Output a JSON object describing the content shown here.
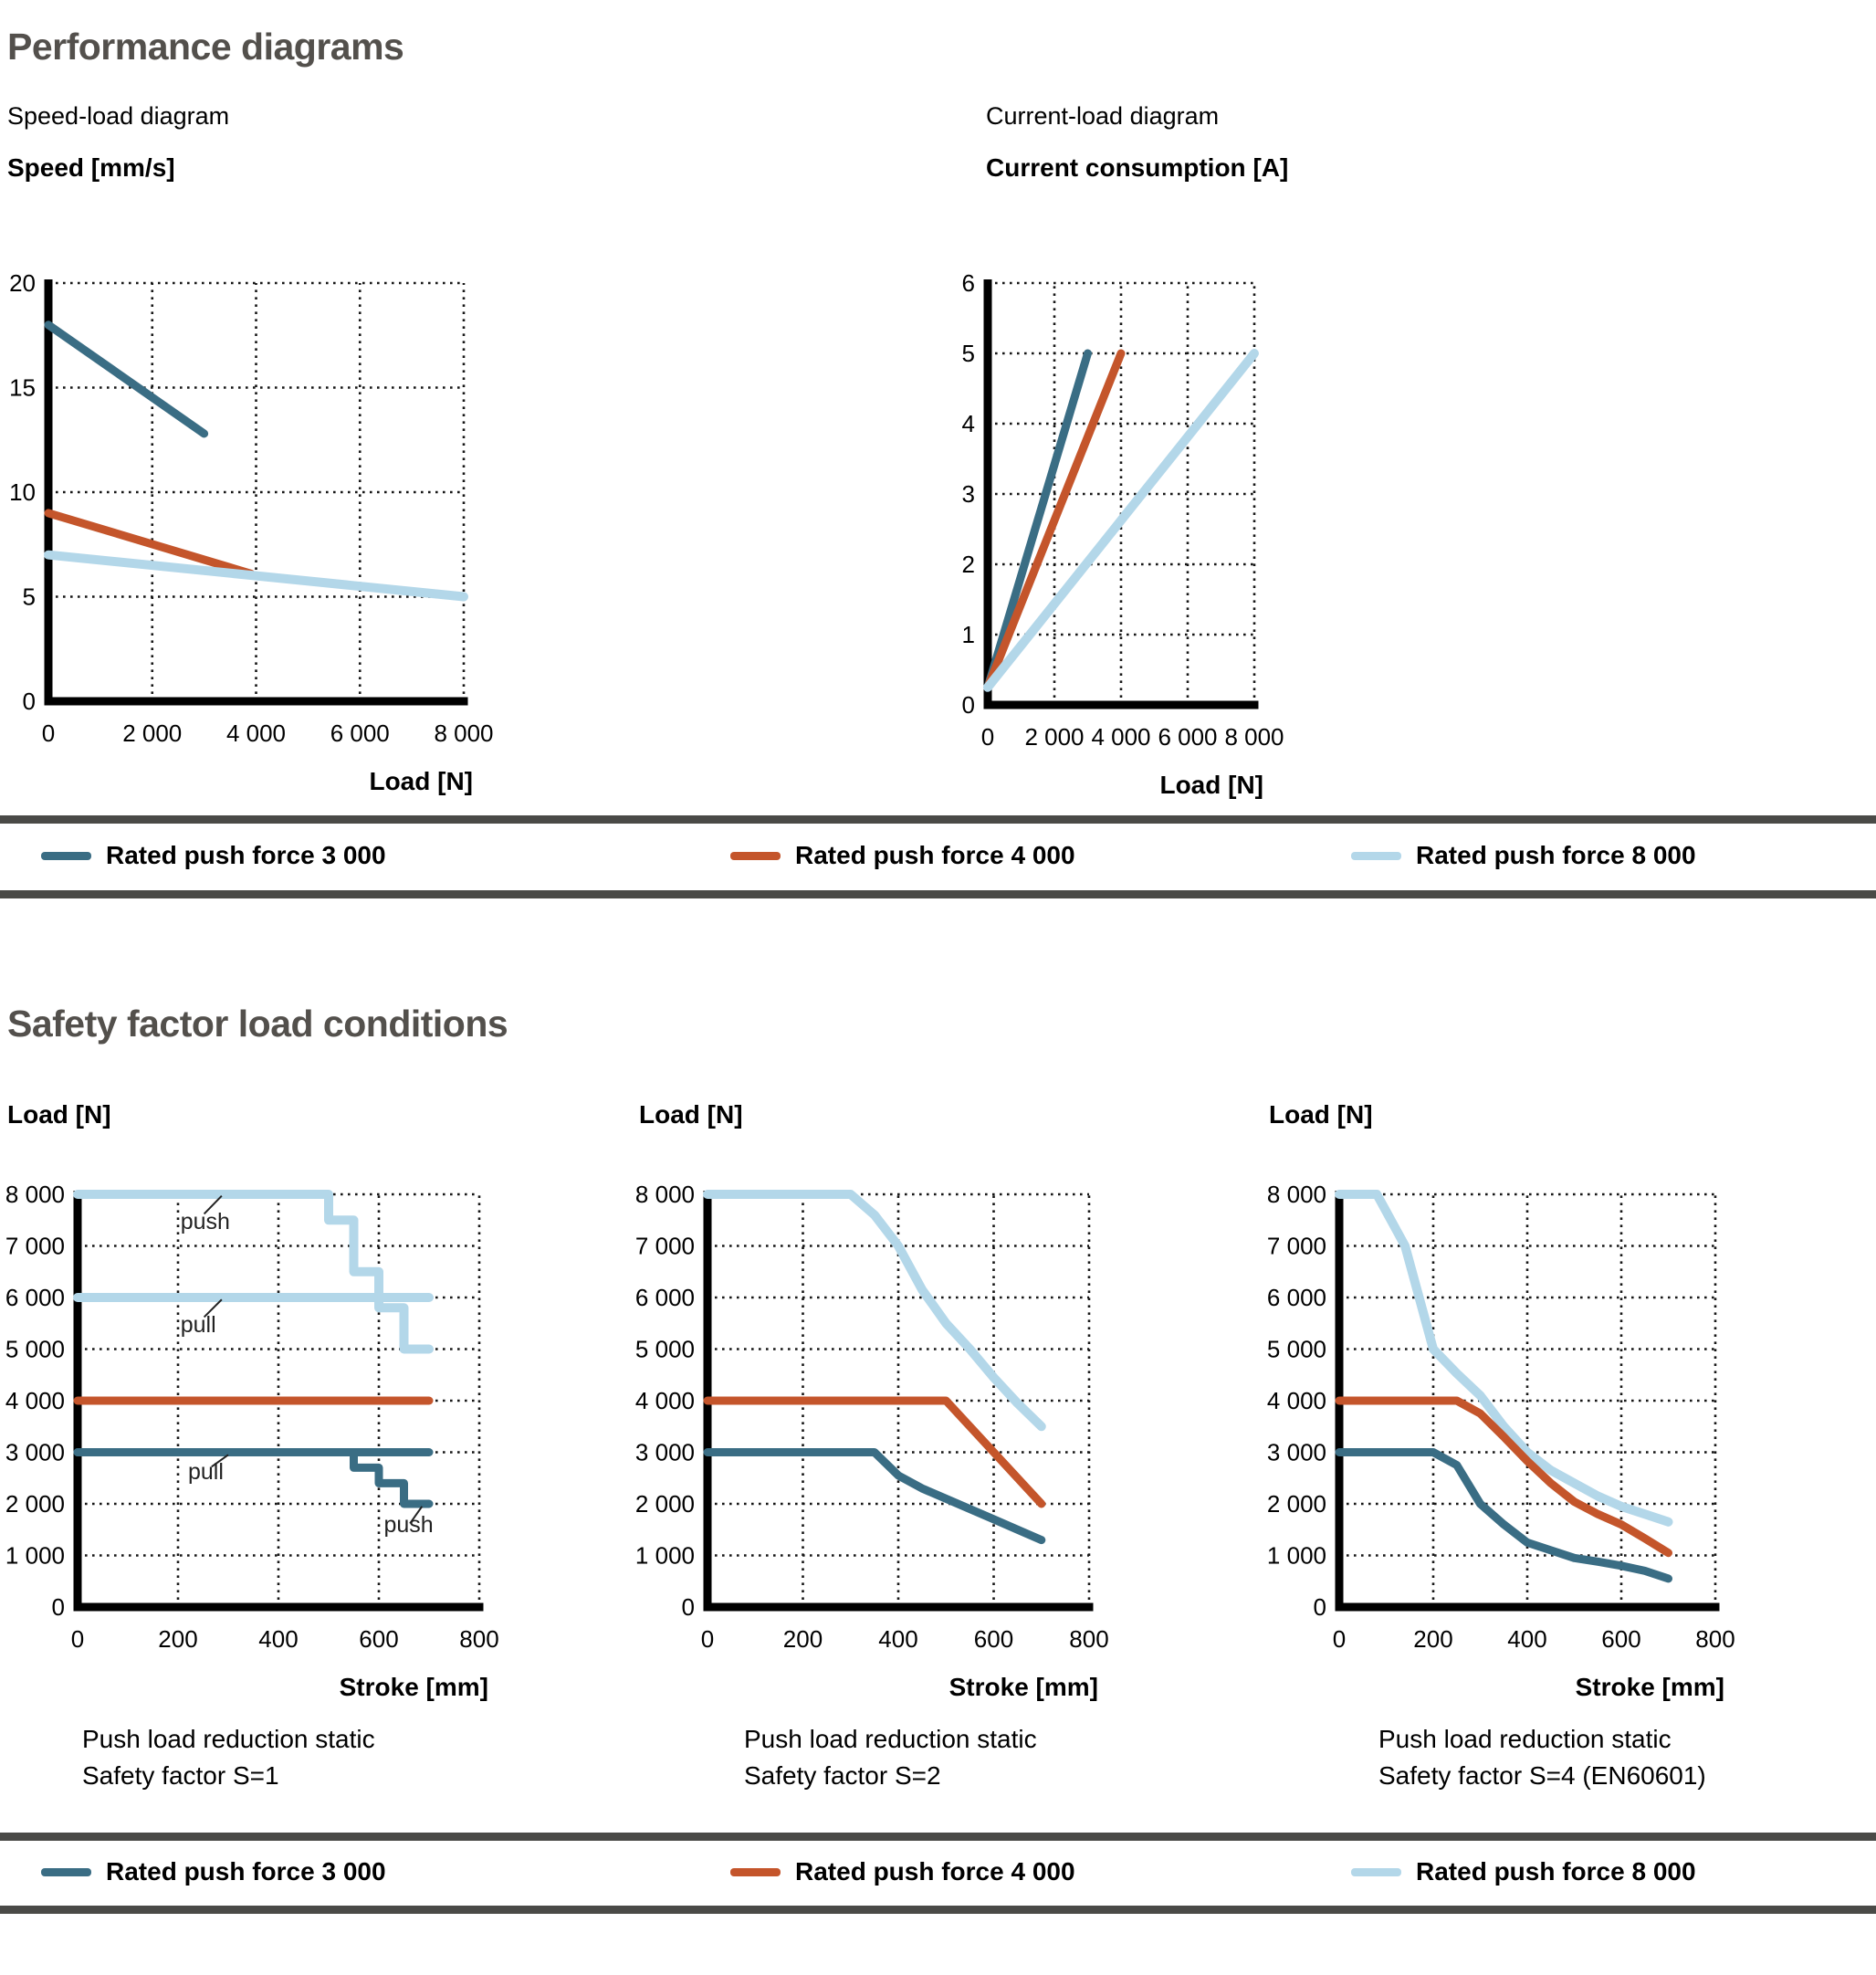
{
  "page": {
    "title": "Performance diagrams",
    "section2_title": "Safety factor load conditions"
  },
  "colors": {
    "force_3000": "#3a6d84",
    "force_4000": "#c4552b",
    "force_8000": "#b3d7e9",
    "heading": "#53504c",
    "rule": "#4a4a47"
  },
  "legend": {
    "items": [
      {
        "label": "Rated push force 3 000",
        "color": "#3a6d84"
      },
      {
        "label": "Rated push force 4 000",
        "color": "#c4552b"
      },
      {
        "label": "Rated push force 8 000",
        "color": "#b3d7e9"
      }
    ]
  },
  "captions": [
    {
      "line1": "Push load reduction static",
      "line2": "Safety factor S=1"
    },
    {
      "line1": "Push load reduction static",
      "line2": "Safety factor S=2"
    },
    {
      "line1": "Push load reduction static",
      "line2": "Safety factor S=4 (EN60601)"
    }
  ],
  "chart_data": [
    {
      "id": "speed_load",
      "type": "line",
      "subtitle": "Speed-load diagram",
      "ylabel_title": "Speed [mm/s]",
      "xlabel": "Load [N]",
      "xlim": [
        0,
        8000
      ],
      "ylim": [
        0,
        20
      ],
      "grid": true,
      "x_ticks": [
        [
          0,
          "0"
        ],
        [
          2000,
          "2 000"
        ],
        [
          4000,
          "4 000"
        ],
        [
          6000,
          "6 000"
        ],
        [
          8000,
          "8 000"
        ]
      ],
      "y_ticks": [
        [
          0,
          "0"
        ],
        [
          5,
          "5"
        ],
        [
          10,
          "10"
        ],
        [
          15,
          "15"
        ],
        [
          20,
          "20"
        ]
      ],
      "series": [
        {
          "name": "Rated push force 3 000",
          "color": "#3a6d84",
          "width": 9,
          "points": [
            [
              0,
              18
            ],
            [
              3000,
              12.8
            ]
          ]
        },
        {
          "name": "Rated push force 4 000",
          "color": "#c4552b",
          "width": 9,
          "points": [
            [
              0,
              9
            ],
            [
              3900,
              6.1
            ]
          ]
        },
        {
          "name": "Rated push force 8 000",
          "color": "#b3d7e9",
          "width": 10,
          "points": [
            [
              0,
              7
            ],
            [
              8000,
              5
            ]
          ]
        }
      ]
    },
    {
      "id": "current_load",
      "type": "line",
      "subtitle": "Current-load diagram",
      "ylabel_title": "Current consumption [A]",
      "xlabel": "Load [N]",
      "xlim": [
        0,
        8000
      ],
      "ylim": [
        0,
        6
      ],
      "grid": true,
      "x_ticks": [
        [
          0,
          "0"
        ],
        [
          2000,
          "2 000"
        ],
        [
          4000,
          "4 000"
        ],
        [
          6000,
          "6 000"
        ],
        [
          8000,
          "8 000"
        ]
      ],
      "y_ticks": [
        [
          0,
          "0"
        ],
        [
          1,
          "1"
        ],
        [
          2,
          "2"
        ],
        [
          3,
          "3"
        ],
        [
          4,
          "4"
        ],
        [
          5,
          "5"
        ],
        [
          6,
          "6"
        ]
      ],
      "series": [
        {
          "name": "Rated push force 3 000",
          "color": "#3a6d84",
          "width": 9,
          "points": [
            [
              0,
              0.25
            ],
            [
              3000,
              5
            ]
          ]
        },
        {
          "name": "Rated push force 4 000",
          "color": "#c4552b",
          "width": 9,
          "points": [
            [
              0,
              0.25
            ],
            [
              4000,
              5
            ]
          ]
        },
        {
          "name": "Rated push force 8 000",
          "color": "#b3d7e9",
          "width": 10,
          "points": [
            [
              0,
              0.25
            ],
            [
              8000,
              5
            ]
          ]
        }
      ]
    },
    {
      "id": "s1",
      "type": "line",
      "ylabel_title": "Load [N]",
      "xlabel": "Stroke [mm]",
      "xlim": [
        0,
        800
      ],
      "ylim": [
        0,
        8000
      ],
      "grid": true,
      "x_ticks": [
        [
          0,
          "0"
        ],
        [
          200,
          "200"
        ],
        [
          400,
          "400"
        ],
        [
          600,
          "600"
        ],
        [
          800,
          "800"
        ]
      ],
      "y_ticks": [
        [
          0,
          "0"
        ],
        [
          1000,
          "1 000"
        ],
        [
          2000,
          "2 000"
        ],
        [
          3000,
          "3 000"
        ],
        [
          4000,
          "4 000"
        ],
        [
          5000,
          "5 000"
        ],
        [
          6000,
          "6 000"
        ],
        [
          7000,
          "7 000"
        ],
        [
          8000,
          "8 000"
        ]
      ],
      "series": [
        {
          "name": "Rated push force 8 000 push",
          "color": "#b3d7e9",
          "width": 10,
          "points": [
            [
              0,
              8000
            ],
            [
              500,
              8000
            ],
            [
              500,
              7500
            ],
            [
              550,
              7500
            ],
            [
              550,
              6500
            ],
            [
              600,
              6500
            ],
            [
              600,
              5800
            ],
            [
              650,
              5800
            ],
            [
              650,
              5000
            ],
            [
              700,
              5000
            ]
          ]
        },
        {
          "name": "Rated push force 8 000 pull",
          "color": "#b3d7e9",
          "width": 10,
          "points": [
            [
              0,
              6000
            ],
            [
              700,
              6000
            ]
          ]
        },
        {
          "name": "Rated push force 4 000",
          "color": "#c4552b",
          "width": 9,
          "points": [
            [
              0,
              4000
            ],
            [
              700,
              4000
            ]
          ]
        },
        {
          "name": "Rated push force 3 000 pull",
          "color": "#3a6d84",
          "width": 9,
          "points": [
            [
              0,
              3000
            ],
            [
              700,
              3000
            ]
          ]
        },
        {
          "name": "Rated push force 3 000 push",
          "color": "#3a6d84",
          "width": 9,
          "points": [
            [
              0,
              3000
            ],
            [
              550,
              3000
            ],
            [
              550,
              2700
            ],
            [
              600,
              2700
            ],
            [
              600,
              2400
            ],
            [
              650,
              2400
            ],
            [
              650,
              2000
            ],
            [
              700,
              2000
            ]
          ]
        }
      ],
      "annotations": [
        {
          "text": "push",
          "tx": 205,
          "ty": 7330,
          "line": [
            [
              252,
              7620
            ],
            [
              287,
              7970
            ]
          ]
        },
        {
          "text": "pull",
          "tx": 205,
          "ty": 5330,
          "line": [
            [
              252,
              5620
            ],
            [
              287,
              5960
            ]
          ]
        },
        {
          "text": "pull",
          "tx": 220,
          "ty": 2480,
          "line": [
            [
              267,
              2720
            ],
            [
              300,
              2950
            ]
          ]
        },
        {
          "text": "push",
          "tx": 610,
          "ty": 1450,
          "line": [
            [
              662,
              1620
            ],
            [
              686,
              1950
            ]
          ]
        }
      ]
    },
    {
      "id": "s2",
      "type": "line",
      "ylabel_title": "Load [N]",
      "xlabel": "Stroke [mm]",
      "xlim": [
        0,
        800
      ],
      "ylim": [
        0,
        8000
      ],
      "grid": true,
      "x_ticks": [
        [
          0,
          "0"
        ],
        [
          200,
          "200"
        ],
        [
          400,
          "400"
        ],
        [
          600,
          "600"
        ],
        [
          800,
          "800"
        ]
      ],
      "y_ticks": [
        [
          0,
          "0"
        ],
        [
          1000,
          "1 000"
        ],
        [
          2000,
          "2 000"
        ],
        [
          3000,
          "3 000"
        ],
        [
          4000,
          "4 000"
        ],
        [
          5000,
          "5 000"
        ],
        [
          6000,
          "6 000"
        ],
        [
          7000,
          "7 000"
        ],
        [
          8000,
          "8 000"
        ]
      ],
      "series": [
        {
          "name": "Rated push force 8 000",
          "color": "#b3d7e9",
          "width": 10,
          "points": [
            [
              0,
              8000
            ],
            [
              300,
              8000
            ],
            [
              350,
              7600
            ],
            [
              400,
              7000
            ],
            [
              450,
              6150
            ],
            [
              500,
              5500
            ],
            [
              550,
              5000
            ],
            [
              600,
              4450
            ],
            [
              650,
              3950
            ],
            [
              700,
              3500
            ]
          ]
        },
        {
          "name": "Rated push force 4 000",
          "color": "#c4552b",
          "width": 9,
          "points": [
            [
              0,
              4000
            ],
            [
              500,
              4000
            ],
            [
              700,
              2000
            ]
          ]
        },
        {
          "name": "Rated push force 3 000",
          "color": "#3a6d84",
          "width": 9,
          "points": [
            [
              0,
              3000
            ],
            [
              350,
              3000
            ],
            [
              400,
              2550
            ],
            [
              450,
              2300
            ],
            [
              500,
              2100
            ],
            [
              550,
              1900
            ],
            [
              600,
              1700
            ],
            [
              650,
              1500
            ],
            [
              700,
              1300
            ]
          ]
        }
      ]
    },
    {
      "id": "s4",
      "type": "line",
      "ylabel_title": "Load [N]",
      "xlabel": "Stroke [mm]",
      "xlim": [
        0,
        800
      ],
      "ylim": [
        0,
        8000
      ],
      "grid": true,
      "x_ticks": [
        [
          0,
          "0"
        ],
        [
          200,
          "200"
        ],
        [
          400,
          "400"
        ],
        [
          600,
          "600"
        ],
        [
          800,
          "800"
        ]
      ],
      "y_ticks": [
        [
          0,
          "0"
        ],
        [
          1000,
          "1 000"
        ],
        [
          2000,
          "2 000"
        ],
        [
          3000,
          "3 000"
        ],
        [
          4000,
          "4 000"
        ],
        [
          5000,
          "5 000"
        ],
        [
          6000,
          "6 000"
        ],
        [
          7000,
          "7 000"
        ],
        [
          8000,
          "8 000"
        ]
      ],
      "series": [
        {
          "name": "Rated push force 8 000",
          "color": "#b3d7e9",
          "width": 10,
          "points": [
            [
              0,
              8000
            ],
            [
              80,
              8000
            ],
            [
              140,
              7000
            ],
            [
              200,
              5000
            ],
            [
              250,
              4530
            ],
            [
              300,
              4100
            ],
            [
              350,
              3500
            ],
            [
              400,
              3000
            ],
            [
              450,
              2650
            ],
            [
              500,
              2400
            ],
            [
              550,
              2150
            ],
            [
              600,
              1950
            ],
            [
              650,
              1800
            ],
            [
              700,
              1650
            ]
          ]
        },
        {
          "name": "Rated push force 4 000",
          "color": "#c4552b",
          "width": 9,
          "points": [
            [
              0,
              4000
            ],
            [
              250,
              4000
            ],
            [
              300,
              3750
            ],
            [
              350,
              3300
            ],
            [
              400,
              2830
            ],
            [
              450,
              2400
            ],
            [
              500,
              2040
            ],
            [
              550,
              1800
            ],
            [
              600,
              1600
            ],
            [
              650,
              1330
            ],
            [
              700,
              1050
            ]
          ]
        },
        {
          "name": "Rated push force 3 000",
          "color": "#3a6d84",
          "width": 9,
          "points": [
            [
              0,
              3000
            ],
            [
              200,
              3000
            ],
            [
              250,
              2750
            ],
            [
              300,
              2000
            ],
            [
              350,
              1600
            ],
            [
              400,
              1250
            ],
            [
              450,
              1100
            ],
            [
              500,
              950
            ],
            [
              550,
              880
            ],
            [
              600,
              800
            ],
            [
              650,
              700
            ],
            [
              700,
              550
            ]
          ]
        }
      ]
    }
  ]
}
